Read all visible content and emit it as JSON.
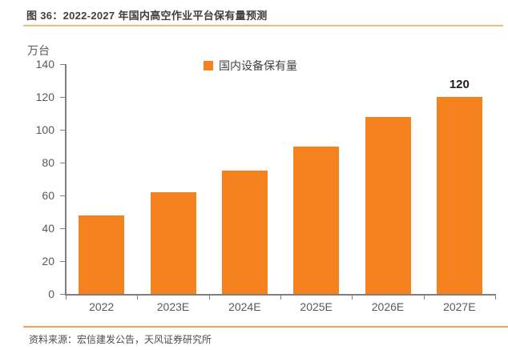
{
  "figure": {
    "title": "图 36：2022-2027 年国内高空作业平台保有量预测",
    "source": "资料来源：宏信建发公告，天风证券研究所"
  },
  "chart_data": {
    "type": "bar",
    "title": "图 36：2022-2027 年国内高空作业平台保有量预测",
    "unit_label": "万台",
    "legend": [
      "国内设备保有量"
    ],
    "legend_position": "top-center",
    "categories": [
      "2022",
      "2023E",
      "2024E",
      "2025E",
      "2026E",
      "2027E"
    ],
    "values": [
      48,
      62,
      75,
      90,
      108,
      120
    ],
    "data_labels": [
      null,
      null,
      null,
      null,
      null,
      "120"
    ],
    "ylim": [
      0,
      140
    ],
    "ytick_interval": 20,
    "grid": false,
    "xlabel": "",
    "ylabel": "万台"
  },
  "colors": {
    "bar": "#f5821e",
    "title_rule": "#f6b67f",
    "source_rule": "#efa057",
    "axis": "#7f7f7f",
    "tick_text": "#595959",
    "title_text": "#3f3f3f",
    "data_label_text": "#1f1f1f"
  }
}
